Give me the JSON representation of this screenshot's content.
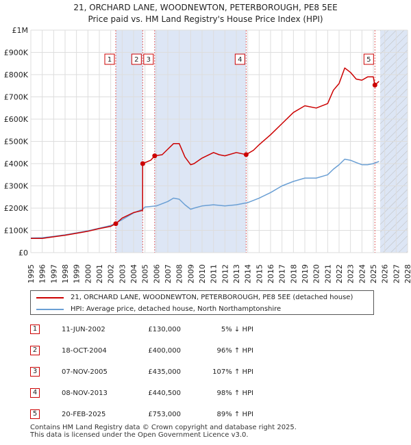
{
  "chart_data": {
    "type": "line",
    "title": "21, ORCHARD LANE, WOODNEWTON, PETERBOROUGH, PE8 5EE",
    "subtitle": "Price paid vs. HM Land Registry's House Price Index (HPI)",
    "xlim": [
      1995,
      2028
    ],
    "ylim": [
      0,
      1000000
    ],
    "x_ticks": [
      "1995",
      "1996",
      "1997",
      "1998",
      "1999",
      "2000",
      "2001",
      "2002",
      "2003",
      "2004",
      "2005",
      "2006",
      "2007",
      "2008",
      "2009",
      "2010",
      "2011",
      "2012",
      "2013",
      "2014",
      "2015",
      "2016",
      "2017",
      "2018",
      "2019",
      "2020",
      "2021",
      "2022",
      "2023",
      "2024",
      "2025",
      "2026",
      "2027",
      "2028"
    ],
    "y_ticks": [
      {
        "value": 0,
        "label": "£0"
      },
      {
        "value": 100000,
        "label": "£100K"
      },
      {
        "value": 200000,
        "label": "£200K"
      },
      {
        "value": 300000,
        "label": "£300K"
      },
      {
        "value": 400000,
        "label": "£400K"
      },
      {
        "value": 500000,
        "label": "£500K"
      },
      {
        "value": 600000,
        "label": "£600K"
      },
      {
        "value": 700000,
        "label": "£700K"
      },
      {
        "value": 800000,
        "label": "£800K"
      },
      {
        "value": 900000,
        "label": "£900K"
      },
      {
        "value": 1000000,
        "label": "£1M"
      }
    ],
    "shaded_periods": [
      [
        2002.44,
        2004.8
      ],
      [
        2005.85,
        2013.86
      ]
    ],
    "hatched_region": [
      2025.6,
      2028
    ],
    "series": [
      {
        "name": "21, ORCHARD LANE, WOODNEWTON, PETERBOROUGH, PE8 5EE (detached house)",
        "color": "#cc0000",
        "x": [
          1995.0,
          1996.0,
          1997.0,
          1998.0,
          1999.0,
          2000.0,
          2001.0,
          2002.0,
          2002.44,
          2003.0,
          2004.0,
          2004.79,
          2004.8,
          2005.5,
          2005.85,
          2006.5,
          2007.0,
          2007.5,
          2008.0,
          2008.5,
          2009.0,
          2009.3,
          2010.0,
          2011.0,
          2011.5,
          2012.0,
          2013.0,
          2013.86,
          2014.5,
          2015.0,
          2016.0,
          2017.0,
          2018.0,
          2019.0,
          2020.0,
          2021.0,
          2021.5,
          2022.0,
          2022.5,
          2023.0,
          2023.5,
          2024.0,
          2024.5,
          2025.0,
          2025.14,
          2025.5
        ],
        "values": [
          64000,
          64000,
          71000,
          78000,
          87000,
          96000,
          108000,
          118000,
          130000,
          155000,
          180000,
          190000,
          400000,
          415000,
          435000,
          440000,
          465000,
          490000,
          490000,
          430000,
          395000,
          400000,
          425000,
          450000,
          440000,
          435000,
          450000,
          440500,
          460000,
          485000,
          530000,
          580000,
          630000,
          660000,
          650000,
          670000,
          730000,
          760000,
          830000,
          810000,
          780000,
          775000,
          790000,
          790000,
          753000,
          770000
        ]
      },
      {
        "name": "HPI: Average price, detached house, North Northamptonshire",
        "color": "#6a9fd4",
        "x": [
          1995.0,
          1996.0,
          1997.0,
          1998.0,
          1999.0,
          2000.0,
          2001.0,
          2002.0,
          2003.0,
          2004.0,
          2004.8,
          2005.0,
          2006.0,
          2007.0,
          2007.5,
          2008.0,
          2008.5,
          2009.0,
          2009.3,
          2010.0,
          2011.0,
          2012.0,
          2013.0,
          2014.0,
          2015.0,
          2016.0,
          2017.0,
          2018.0,
          2019.0,
          2020.0,
          2021.0,
          2021.5,
          2022.0,
          2022.5,
          2023.0,
          2023.5,
          2024.0,
          2024.5,
          2025.0,
          2025.5
        ],
        "values": [
          66000,
          67000,
          73000,
          80000,
          89000,
          98000,
          110000,
          122000,
          148000,
          178000,
          195000,
          205000,
          210000,
          230000,
          245000,
          240000,
          215000,
          195000,
          200000,
          210000,
          215000,
          210000,
          215000,
          225000,
          245000,
          270000,
          300000,
          320000,
          335000,
          335000,
          350000,
          375000,
          395000,
          420000,
          415000,
          405000,
          395000,
          395000,
          400000,
          410000
        ]
      }
    ],
    "sale_markers": [
      {
        "n": "1",
        "x": 2002.44,
        "value": 130000
      },
      {
        "n": "2",
        "x": 2004.8,
        "value": 400000
      },
      {
        "n": "3",
        "x": 2005.85,
        "value": 435000
      },
      {
        "n": "4",
        "x": 2013.86,
        "value": 440500
      },
      {
        "n": "5",
        "x": 2025.14,
        "value": 753000
      }
    ]
  },
  "legend": {
    "property": "21, ORCHARD LANE, WOODNEWTON, PETERBOROUGH, PE8 5EE (detached house)",
    "hpi": "HPI: Average price, detached house, North Northamptonshire"
  },
  "sales": [
    {
      "n": "1",
      "date": "11-JUN-2002",
      "price": "£130,000",
      "hpi": "5% ↓ HPI"
    },
    {
      "n": "2",
      "date": "18-OCT-2004",
      "price": "£400,000",
      "hpi": "96% ↑ HPI"
    },
    {
      "n": "3",
      "date": "07-NOV-2005",
      "price": "£435,000",
      "hpi": "107% ↑ HPI"
    },
    {
      "n": "4",
      "date": "08-NOV-2013",
      "price": "£440,500",
      "hpi": "98% ↑ HPI"
    },
    {
      "n": "5",
      "date": "20-FEB-2025",
      "price": "£753,000",
      "hpi": "89% ↑ HPI"
    }
  ],
  "footer": {
    "line1": "Contains HM Land Registry data © Crown copyright and database right 2025.",
    "line2": "This data is licensed under the Open Government Licence v3.0."
  },
  "colors": {
    "property": "#cc0000",
    "hpi": "#6a9fd4",
    "shade": "#dde6f5",
    "grid": "#dddddd",
    "marker_line": "#e06060"
  }
}
